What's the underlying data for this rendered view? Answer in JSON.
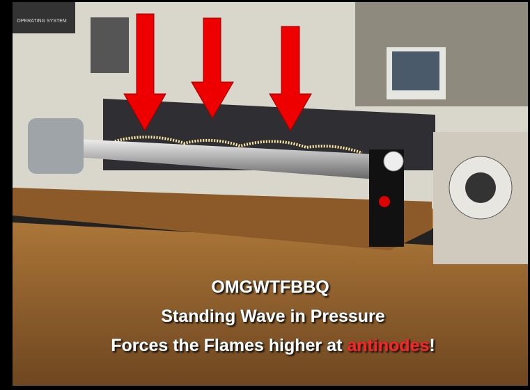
{
  "poster": {
    "text": "OPERATING SYSTEM"
  },
  "caption": {
    "line1": "OMGWTFBBQ",
    "line2": "Standing Wave in Pressure",
    "line3": {
      "before": "Forces the Flames higher at",
      "highlight": "antinodes",
      "after": "!"
    }
  }
}
